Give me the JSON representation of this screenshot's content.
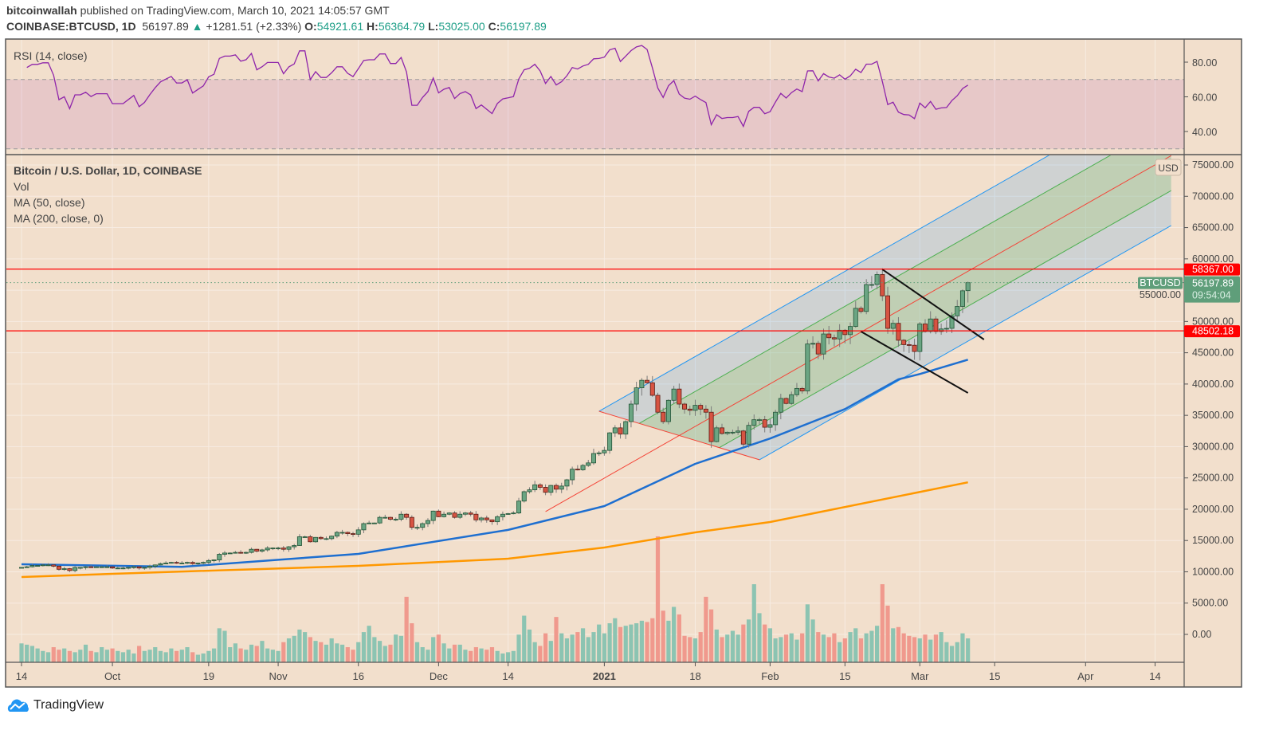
{
  "header": {
    "publisher": "bitcoinwallah",
    "published_text": "published on TradingView.com, March 10, 2021 14:05:57 GMT",
    "symbol": "COINBASE:BTCUSD, 1D",
    "last": "56197.89",
    "arrow": "▲",
    "change": "+1281.51 (+2.33%)",
    "o_label": "O:",
    "o": "54921.61",
    "h_label": "H:",
    "h": "56364.79",
    "l_label": "L:",
    "l": "53025.00",
    "c_label": "C:",
    "c": "56197.89"
  },
  "rsi": {
    "label": "RSI (14, close)",
    "axis_labels": [
      {
        "value": 80,
        "text": "80.00"
      },
      {
        "value": 60,
        "text": "60.00"
      },
      {
        "value": 40,
        "text": "40.00"
      }
    ],
    "upper_band": 70,
    "lower_band": 30,
    "line_color": "#8e24aa"
  },
  "legend": {
    "title": "Bitcoin / U.S. Dollar, 1D, COINBASE",
    "vol": "Vol",
    "ma50": "MA (50, close)",
    "ma200": "MA (200, close, 0)"
  },
  "price_axis": {
    "currency": "USD",
    "labels": [
      {
        "value": 75000,
        "text": "75000.00"
      },
      {
        "value": 70000,
        "text": "70000.00"
      },
      {
        "value": 65000,
        "text": "65000.00"
      },
      {
        "value": 60000,
        "text": "60000.00"
      },
      {
        "value": 55000,
        "text": "55000.00"
      },
      {
        "value": 50000,
        "text": "50000.00"
      },
      {
        "value": 45000,
        "text": "45000.00"
      },
      {
        "value": 40000,
        "text": "40000.00"
      },
      {
        "value": 35000,
        "text": "35000.00"
      },
      {
        "value": 30000,
        "text": "30000.00"
      },
      {
        "value": 25000,
        "text": "25000.00"
      },
      {
        "value": 20000,
        "text": "20000.00"
      },
      {
        "value": 15000,
        "text": "15000.00"
      },
      {
        "value": 10000,
        "text": "10000.00"
      },
      {
        "value": 5000,
        "text": "5000.00"
      },
      {
        "value": 0,
        "text": "0.00"
      }
    ]
  },
  "tags": {
    "resistance": {
      "value": 58367.0,
      "text": "58367.00",
      "color": "#ff0000"
    },
    "support": {
      "value": 48502.18,
      "text": "48502.18",
      "color": "#ff0000"
    },
    "last_price": {
      "value": 56197.89,
      "text": "56197.89",
      "countdown": "09:54:04",
      "symbol": "BTCUSD",
      "color": "#5f9e7a"
    }
  },
  "footer": {
    "brand": "TradingView"
  },
  "chart_data": {
    "type": "candlestick",
    "symbol": "BTCUSD",
    "start_date": "2020-09-14",
    "colors": {
      "up": "#6ba583",
      "down": "#d75442",
      "vol_up": "#8cc4b2",
      "vol_down": "#f0998d",
      "ma50": "#1e6fd0",
      "ma200": "#ff9800",
      "background": "#f2dfcc"
    },
    "closes": [
      10700,
      10800,
      11000,
      11000,
      11100,
      11100,
      10900,
      10400,
      10500,
      10200,
      10700,
      10700,
      10800,
      10700,
      10800,
      10800,
      10800,
      10600,
      10600,
      10600,
      10700,
      10800,
      10600,
      10700,
      10900,
      11100,
      11300,
      11400,
      11500,
      11400,
      11400,
      11500,
      11300,
      11400,
      11500,
      11800,
      11900,
      12800,
      13000,
      13000,
      13100,
      13000,
      13100,
      13600,
      13300,
      13500,
      13800,
      13800,
      13800,
      13600,
      14000,
      14200,
      15600,
      15600,
      14800,
      15500,
      15300,
      15300,
      15700,
      16300,
      16300,
      16100,
      16000,
      16700,
      17700,
      17800,
      17800,
      18700,
      18700,
      18400,
      18400,
      19200,
      18700,
      17100,
      17100,
      17700,
      18200,
      19700,
      18800,
      19200,
      19400,
      18700,
      19200,
      19400,
      19200,
      18300,
      18600,
      18300,
      18000,
      18800,
      19200,
      19300,
      19400,
      21300,
      22800,
      23100,
      23900,
      23500,
      22700,
      23800,
      23200,
      23700,
      24700,
      26400,
      26300,
      27000,
      27400,
      28900,
      29000,
      29400,
      32200,
      33000,
      32000,
      34000,
      36800,
      39400,
      40600,
      40200,
      38200,
      35500,
      34000,
      37400,
      39200,
      36800,
      36000,
      35800,
      36600,
      36000,
      35500,
      30800,
      33000,
      32100,
      32300,
      32300,
      32500,
      30400,
      33400,
      34300,
      34300,
      33100,
      33500,
      35500,
      37700,
      36900,
      38300,
      39300,
      38900,
      46400,
      46500,
      44800,
      48000,
      47400,
      47200,
      48600,
      47900,
      49200,
      52100,
      51600,
      55900,
      55900,
      57500,
      54100,
      48900,
      49700,
      47000,
      46300,
      46200,
      45200,
      49600,
      48400,
      50400,
      48400,
      48800,
      48900,
      50900,
      52400,
      54900,
      56197.89
    ],
    "last_candle": {
      "open": 54921.61,
      "high": 56364.79,
      "low": 53025.0,
      "close": 56197.89
    },
    "volumes": [
      15,
      14,
      13,
      11,
      9,
      8,
      12,
      10,
      11,
      9,
      8,
      10,
      14,
      9,
      8,
      12,
      10,
      11,
      9,
      8,
      10,
      7,
      13,
      9,
      10,
      12,
      9,
      8,
      11,
      9,
      10,
      12,
      8,
      6,
      7,
      9,
      11,
      27,
      25,
      12,
      15,
      11,
      10,
      14,
      13,
      17,
      11,
      10,
      9,
      16,
      19,
      21,
      26,
      24,
      20,
      17,
      16,
      14,
      19,
      15,
      14,
      12,
      10,
      16,
      24,
      29,
      20,
      17,
      13,
      14,
      22,
      21,
      52,
      31,
      16,
      12,
      10,
      20,
      22,
      15,
      11,
      14,
      14,
      10,
      9,
      12,
      11,
      10,
      12,
      9,
      7,
      8,
      9,
      22,
      37,
      26,
      16,
      13,
      23,
      17,
      36,
      23,
      19,
      22,
      24,
      27,
      20,
      24,
      30,
      23,
      31,
      35,
      28,
      29,
      30,
      31,
      33,
      32,
      35,
      100,
      41,
      33,
      44,
      38,
      21,
      20,
      19,
      24,
      52,
      42,
      26,
      20,
      22,
      25,
      22,
      30,
      34,
      62,
      39,
      30,
      27,
      19,
      20,
      22,
      23,
      18,
      23,
      46,
      34,
      24,
      22,
      20,
      23,
      16,
      19,
      24,
      27,
      19,
      23,
      25,
      29,
      62,
      45,
      27,
      28,
      23,
      21,
      20,
      19,
      22,
      18,
      22,
      24,
      16,
      13,
      16,
      23,
      19
    ],
    "ma50": [
      [
        "2020-09-14",
        11200
      ],
      [
        "2020-10-14",
        10800
      ],
      [
        "2020-11-16",
        12860
      ],
      [
        "2020-12-14",
        16700
      ],
      [
        "2021-01-01",
        20500
      ],
      [
        "2021-01-18",
        27250
      ],
      [
        "2021-02-01",
        31300
      ],
      [
        "2021-02-15",
        36000
      ],
      [
        "2021-02-25",
        40750
      ],
      [
        "2021-03-01",
        41600
      ],
      [
        "2021-03-10",
        43900
      ]
    ],
    "ma200": [
      [
        "2020-09-14",
        9170
      ],
      [
        "2020-10-01",
        9680
      ],
      [
        "2020-11-16",
        10950
      ],
      [
        "2020-12-14",
        12100
      ],
      [
        "2021-01-01",
        13880
      ],
      [
        "2021-01-18",
        16300
      ],
      [
        "2021-02-01",
        17950
      ],
      [
        "2021-03-10",
        24300
      ]
    ],
    "pitchfork": {
      "handle": [
        "2020-12-31",
        35650
      ],
      "low": [
        "2021-01-30",
        27900
      ],
      "slope_usd_per_day": 486,
      "median_start": "2020-12-21",
      "colors": {
        "outer": "#2196f3",
        "inner": "#4caf50",
        "median": "#f44336"
      }
    },
    "trendlines": [
      {
        "from": [
          "2021-02-22",
          58320
        ],
        "to": [
          "2021-03-13",
          47116
        ]
      },
      {
        "from": [
          "2021-02-18",
          48390
        ],
        "to": [
          "2021-03-10",
          38580
        ]
      }
    ],
    "hlines": [
      58367.0,
      48502.18
    ],
    "time_axis": [
      [
        "2020-09-14",
        "14"
      ],
      [
        "2020-10-01",
        "Oct"
      ],
      [
        "2020-10-19",
        "19"
      ],
      [
        "2020-11-01",
        "Nov"
      ],
      [
        "2020-11-16",
        "16"
      ],
      [
        "2020-12-01",
        "Dec"
      ],
      [
        "2020-12-14",
        "14"
      ],
      [
        "2021-01-01",
        "2021"
      ],
      [
        "2021-01-18",
        "18"
      ],
      [
        "2021-02-01",
        "Feb"
      ],
      [
        "2021-02-15",
        "15"
      ],
      [
        "2021-03-01",
        "Mar"
      ],
      [
        "2021-03-15",
        "15"
      ],
      [
        "2021-04-01",
        "Apr"
      ],
      [
        "2021-04-14",
        "14"
      ]
    ]
  }
}
